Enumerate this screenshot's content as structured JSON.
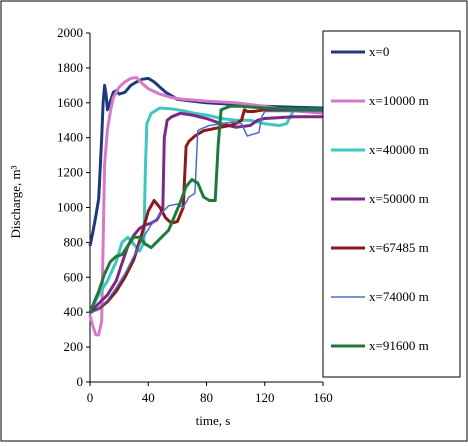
{
  "chart_data": {
    "type": "line",
    "xlabel": "time, s",
    "ylabel": "Discharge, m³",
    "xlim": [
      0,
      160
    ],
    "ylim": [
      0,
      2000
    ],
    "xticks": [
      "0",
      "40",
      "80",
      "120",
      "160"
    ],
    "yticks": [
      "0",
      "200",
      "400",
      "600",
      "800",
      "1000",
      "1200",
      "1400",
      "1600",
      "1800",
      "2000"
    ],
    "grid": false,
    "legend_position": "right",
    "series": [
      {
        "name": "x=0",
        "color": "#1f3a7a",
        "width": 3,
        "x": [
          0,
          2,
          4,
          6,
          8,
          9,
          10,
          11,
          12,
          14,
          16,
          18,
          20,
          24,
          28,
          32,
          36,
          40,
          44,
          48,
          52,
          56,
          60,
          70,
          80,
          100,
          120,
          140,
          160
        ],
        "y": [
          780,
          860,
          950,
          1050,
          1400,
          1600,
          1700,
          1650,
          1560,
          1610,
          1660,
          1670,
          1650,
          1660,
          1700,
          1720,
          1735,
          1740,
          1720,
          1690,
          1660,
          1640,
          1620,
          1610,
          1600,
          1590,
          1580,
          1575,
          1570
        ]
      },
      {
        "name": "x=10000 m",
        "color": "#d67ac6",
        "width": 3,
        "x": [
          0,
          2,
          4,
          6,
          8,
          10,
          12,
          14,
          16,
          20,
          24,
          28,
          32,
          36,
          40,
          48,
          56,
          64,
          80,
          100,
          120,
          140,
          160
        ],
        "y": [
          380,
          320,
          270,
          270,
          350,
          1250,
          1450,
          1550,
          1630,
          1690,
          1720,
          1740,
          1745,
          1710,
          1680,
          1650,
          1630,
          1620,
          1610,
          1600,
          1580,
          1555,
          1540
        ]
      },
      {
        "name": "x=40000 m",
        "color": "#3ec6c0",
        "width": 3,
        "x": [
          0,
          6,
          12,
          18,
          22,
          26,
          30,
          34,
          37,
          38,
          39,
          42,
          48,
          56,
          64,
          72,
          80,
          90,
          100,
          110,
          120,
          130,
          135,
          140,
          160
        ],
        "y": [
          400,
          500,
          580,
          690,
          800,
          830,
          790,
          750,
          800,
          1200,
          1480,
          1540,
          1570,
          1565,
          1555,
          1540,
          1530,
          1510,
          1500,
          1500,
          1480,
          1470,
          1480,
          1560,
          1560
        ]
      },
      {
        "name": "x=50000 m",
        "color": "#7a2a84",
        "width": 3,
        "x": [
          0,
          6,
          12,
          18,
          22,
          26,
          30,
          34,
          38,
          42,
          46,
          50,
          51,
          53,
          56,
          62,
          70,
          80,
          90,
          100,
          110,
          115,
          120,
          140,
          160
        ],
        "y": [
          400,
          450,
          500,
          580,
          680,
          780,
          840,
          880,
          900,
          910,
          930,
          990,
          1400,
          1500,
          1520,
          1540,
          1530,
          1510,
          1480,
          1460,
          1470,
          1500,
          1510,
          1520,
          1520
        ]
      },
      {
        "name": "x=67485 m",
        "color": "#8b1a1a",
        "width": 3,
        "x": [
          0,
          6,
          12,
          18,
          24,
          30,
          36,
          40,
          44,
          48,
          52,
          56,
          60,
          64,
          66,
          68,
          72,
          78,
          84,
          90,
          96,
          100,
          104,
          106,
          108,
          112,
          120,
          140,
          160
        ],
        "y": [
          400,
          420,
          460,
          520,
          600,
          700,
          860,
          980,
          1040,
          1000,
          940,
          910,
          920,
          1000,
          1350,
          1380,
          1410,
          1440,
          1450,
          1460,
          1470,
          1480,
          1500,
          1560,
          1550,
          1550,
          1560,
          1560,
          1560
        ]
      },
      {
        "name": "x=74000 m",
        "color": "#4a6ec8",
        "width": 1.5,
        "x": [
          0,
          6,
          12,
          18,
          24,
          30,
          36,
          42,
          48,
          54,
          60,
          64,
          68,
          72,
          74,
          76,
          82,
          90,
          98,
          104,
          108,
          112,
          116,
          118,
          120,
          140,
          160
        ],
        "y": [
          390,
          420,
          470,
          540,
          620,
          720,
          820,
          900,
          960,
          1010,
          1020,
          1000,
          1060,
          1080,
          1440,
          1450,
          1470,
          1480,
          1490,
          1480,
          1410,
          1420,
          1430,
          1520,
          1550,
          1550,
          1550
        ]
      },
      {
        "name": "x=91600 m",
        "color": "#1f7a3a",
        "width": 3,
        "x": [
          0,
          2,
          4,
          6,
          10,
          14,
          18,
          22,
          26,
          30,
          34,
          38,
          42,
          48,
          54,
          58,
          62,
          66,
          70,
          74,
          78,
          82,
          86,
          88,
          90,
          96,
          104,
          112,
          120,
          140,
          160
        ],
        "y": [
          400,
          440,
          480,
          520,
          620,
          690,
          720,
          730,
          780,
          830,
          830,
          790,
          770,
          820,
          870,
          950,
          1030,
          1120,
          1160,
          1140,
          1060,
          1040,
          1040,
          1360,
          1560,
          1580,
          1580,
          1575,
          1570,
          1565,
          1565
        ]
      }
    ]
  }
}
